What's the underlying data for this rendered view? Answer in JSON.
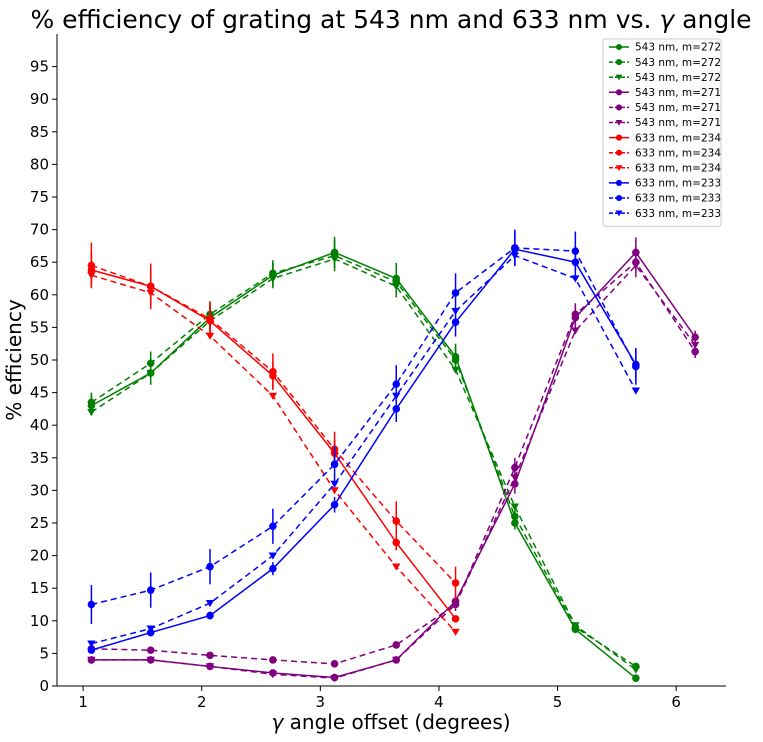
{
  "chart_data": {
    "type": "line",
    "title_main": "% efficiency  of grating at 543 nm and 633 nm vs.",
    "title_symbol": "γ",
    "title_tail": "angle",
    "xlabel_symbol": "γ",
    "xlabel_rest": "angle offset (degrees)",
    "ylabel": "% efficiency",
    "xlim": [
      0.78,
      6.42
    ],
    "ylim": [
      0,
      100
    ],
    "x_ticks": [
      1,
      2,
      3,
      4,
      5,
      6
    ],
    "y_ticks": [
      0,
      5,
      10,
      15,
      20,
      25,
      30,
      35,
      40,
      45,
      50,
      55,
      60,
      65,
      70,
      75,
      80,
      85,
      90,
      95
    ],
    "grid": false,
    "legend_position": "top-right",
    "colors": {
      "green": "#008000",
      "purple": "#800080",
      "red": "#ff0000",
      "blue": "#0000ff"
    },
    "series": [
      {
        "name": "543 nm, m=272",
        "color": "green",
        "style": "solid",
        "marker": "circle",
        "x": [
          1.07,
          1.57,
          2.07,
          2.6,
          3.12,
          3.64,
          4.14,
          4.64,
          5.15,
          5.66
        ],
        "y": [
          43,
          48,
          56.5,
          63,
          66.5,
          62.5,
          50.5,
          25,
          8.7,
          1.2
        ],
        "err": [
          1.5,
          1.8,
          2,
          2,
          2.4,
          2.4,
          2,
          1,
          0.6,
          0.3
        ]
      },
      {
        "name": "543 nm, m=272",
        "color": "green",
        "style": "dashed",
        "marker": "circle",
        "x": [
          1.07,
          1.57,
          2.07,
          2.6,
          3.12,
          3.64,
          4.14,
          4.64,
          5.15,
          5.66
        ],
        "y": [
          43.5,
          49.5,
          57,
          63.3,
          66,
          62,
          50,
          26,
          9,
          3
        ],
        "err": [
          1.5,
          1.8,
          2,
          2,
          2.4,
          2.4,
          2,
          1,
          0.6,
          0.3
        ]
      },
      {
        "name": "543 nm, m=272",
        "color": "green",
        "style": "dashed",
        "marker": "triangle",
        "x": [
          1.07,
          1.57,
          2.07,
          2.6,
          3.12,
          3.64,
          4.14,
          4.64,
          5.15,
          5.66
        ],
        "y": [
          42,
          48,
          56,
          62.5,
          65.5,
          61.3,
          48.5,
          27.5,
          9.3,
          2.5
        ],
        "err": []
      },
      {
        "name": "543 nm, m=271",
        "color": "purple",
        "style": "solid",
        "marker": "circle",
        "x": [
          1.07,
          1.57,
          2.07,
          2.6,
          3.12,
          3.64,
          4.14,
          4.64,
          5.15,
          5.66,
          6.16
        ],
        "y": [
          4,
          4,
          3,
          2,
          1.3,
          4,
          13,
          31,
          56.5,
          66.5,
          53.5
        ],
        "err": [
          0.3,
          0.3,
          0.3,
          0.3,
          0.3,
          0.4,
          1,
          1.5,
          1.7,
          2.3,
          1
        ]
      },
      {
        "name": "543 nm, m=271",
        "color": "purple",
        "style": "dashed",
        "marker": "circle",
        "x": [
          1.07,
          1.57,
          2.07,
          2.6,
          3.12,
          3.64,
          4.14,
          4.64,
          5.15,
          5.66,
          6.16
        ],
        "y": [
          5.7,
          5.5,
          4.7,
          4,
          3.4,
          6.3,
          12.5,
          33.5,
          57,
          65,
          51.3
        ],
        "err": [
          0.3,
          0.3,
          0.3,
          0.3,
          0.3,
          0.4,
          1,
          1.5,
          1.7,
          2.3,
          1
        ]
      },
      {
        "name": "543 nm, m=271",
        "color": "purple",
        "style": "dashed",
        "marker": "triangle",
        "x": [
          1.07,
          1.57,
          2.07,
          2.6,
          3.12,
          3.64,
          4.14,
          4.64,
          5.15,
          5.66,
          6.16
        ],
        "y": [
          4,
          4,
          3,
          1.8,
          1.2,
          4,
          12.5,
          32,
          54.5,
          64.5,
          52.3
        ],
        "err": []
      },
      {
        "name": "633 nm, m=234",
        "color": "red",
        "style": "solid",
        "marker": "circle",
        "x": [
          1.07,
          1.57,
          2.07,
          2.6,
          3.12,
          3.64,
          4.14
        ],
        "y": [
          63.8,
          61.3,
          56,
          47.6,
          35.7,
          22,
          10.3
        ],
        "err": [
          2.5,
          2.5,
          2.2,
          2,
          2,
          1.2,
          0.5
        ]
      },
      {
        "name": "633 nm, m=234",
        "color": "red",
        "style": "dashed",
        "marker": "circle",
        "x": [
          1.07,
          1.57,
          2.07,
          2.6,
          3.12,
          3.64,
          4.14
        ],
        "y": [
          64.5,
          61.3,
          56.3,
          48.2,
          36.3,
          25.3,
          15.8
        ],
        "err": [
          3.5,
          3.5,
          2.7,
          2.8,
          2.7,
          3,
          2.5
        ]
      },
      {
        "name": "633 nm, m=234",
        "color": "red",
        "style": "dashed",
        "marker": "triangle",
        "x": [
          1.07,
          1.57,
          2.07,
          2.6,
          3.12,
          3.64,
          4.14
        ],
        "y": [
          63,
          60.3,
          53.7,
          44.5,
          30,
          18.3,
          8.3
        ],
        "err": []
      },
      {
        "name": "633 nm, m=233",
        "color": "blue",
        "style": "solid",
        "marker": "circle",
        "x": [
          1.07,
          1.57,
          2.07,
          2.6,
          3.12,
          3.64,
          4.14,
          4.64,
          5.15,
          5.66
        ],
        "y": [
          5.5,
          8.2,
          10.8,
          18,
          27.8,
          42.5,
          55.8,
          67,
          65,
          49.3
        ],
        "err": [
          0.5,
          0.6,
          0.6,
          1,
          1.2,
          2,
          2.2,
          2.5,
          2.5,
          2.5
        ]
      },
      {
        "name": "633 nm, m=233",
        "color": "blue",
        "style": "dashed",
        "marker": "circle",
        "x": [
          1.07,
          1.57,
          2.07,
          2.6,
          3.12,
          3.64,
          4.14,
          4.64,
          5.15,
          5.66
        ],
        "y": [
          12.5,
          14.7,
          18.3,
          24.5,
          34,
          46.3,
          60.3,
          67.2,
          66.7,
          49
        ],
        "err": [
          3,
          2.7,
          2.7,
          2.7,
          2.8,
          2.9,
          3,
          2.8,
          3,
          2.8
        ]
      },
      {
        "name": "633 nm, m=233",
        "color": "blue",
        "style": "dashed",
        "marker": "triangle",
        "x": [
          1.07,
          1.57,
          2.07,
          2.6,
          3.12,
          3.64,
          4.14,
          4.64,
          5.15,
          5.66
        ],
        "y": [
          6.5,
          8.8,
          12.7,
          20,
          31,
          44.5,
          57.5,
          66,
          62.5,
          45.3
        ],
        "err": []
      }
    ]
  }
}
